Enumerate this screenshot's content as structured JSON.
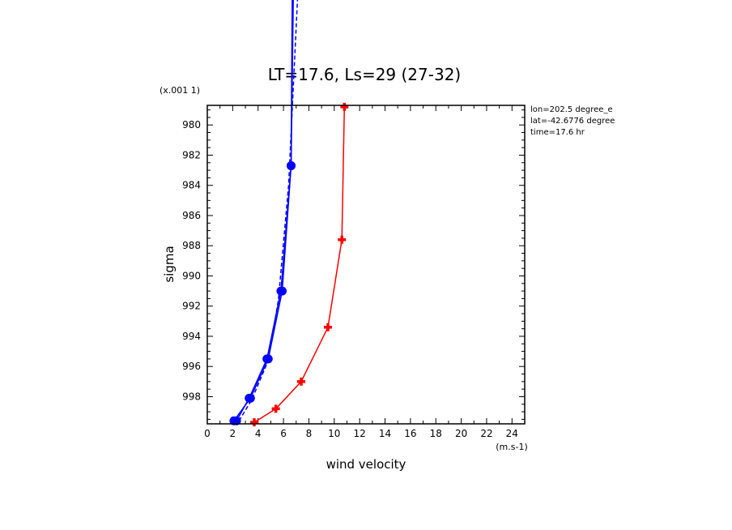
{
  "chart_data": {
    "type": "line",
    "title": "LT=17.6, Ls=29 (27-32)",
    "xlabel": "wind velocity",
    "ylabel": "sigma",
    "x_unit": "(m.s-1)",
    "y_unit": "(x.001 1)",
    "xlim": [
      0,
      25
    ],
    "ylim": [
      999.8,
      978.7
    ],
    "x_ticks": [
      0,
      2,
      4,
      6,
      8,
      10,
      12,
      14,
      16,
      18,
      20,
      22,
      24
    ],
    "y_ticks": [
      980,
      982,
      984,
      986,
      988,
      990,
      992,
      994,
      996,
      998
    ],
    "annotations": [
      "lon=202.5 degree_e",
      "lat=-42.6776 degree",
      "time=17.6 hr"
    ],
    "series": [
      {
        "color": "#0000ff",
        "style": "solid",
        "marker": "circle",
        "points": [
          [
            2.1,
            999.6
          ],
          [
            3.4,
            998.1
          ],
          [
            4.8,
            995.5
          ],
          [
            5.9,
            991.0
          ],
          [
            6.6,
            982.7
          ],
          [
            6.8,
            970.0
          ]
        ]
      },
      {
        "color": "#0000ff",
        "style": "solid",
        "marker": "circle",
        "points": [
          [
            2.3,
            999.6
          ],
          [
            3.3,
            998.1
          ],
          [
            4.7,
            995.5
          ],
          [
            5.8,
            991.0
          ],
          [
            6.6,
            982.7
          ],
          [
            6.7,
            970.0
          ]
        ]
      },
      {
        "color": "#0000ff",
        "style": "dashed",
        "marker": "none",
        "points": [
          [
            2.5,
            999.6
          ],
          [
            3.5,
            998.2
          ],
          [
            4.8,
            995.6
          ],
          [
            5.6,
            991.6
          ],
          [
            6.4,
            984.0
          ],
          [
            7.2,
            970.0
          ]
        ]
      },
      {
        "color": "#ff0000",
        "style": "solid",
        "marker": "plus",
        "points": [
          [
            3.7,
            999.7
          ],
          [
            5.4,
            998.8
          ],
          [
            7.4,
            997.0
          ],
          [
            9.5,
            993.4
          ],
          [
            10.6,
            987.6
          ],
          [
            10.8,
            978.8
          ]
        ]
      }
    ]
  }
}
